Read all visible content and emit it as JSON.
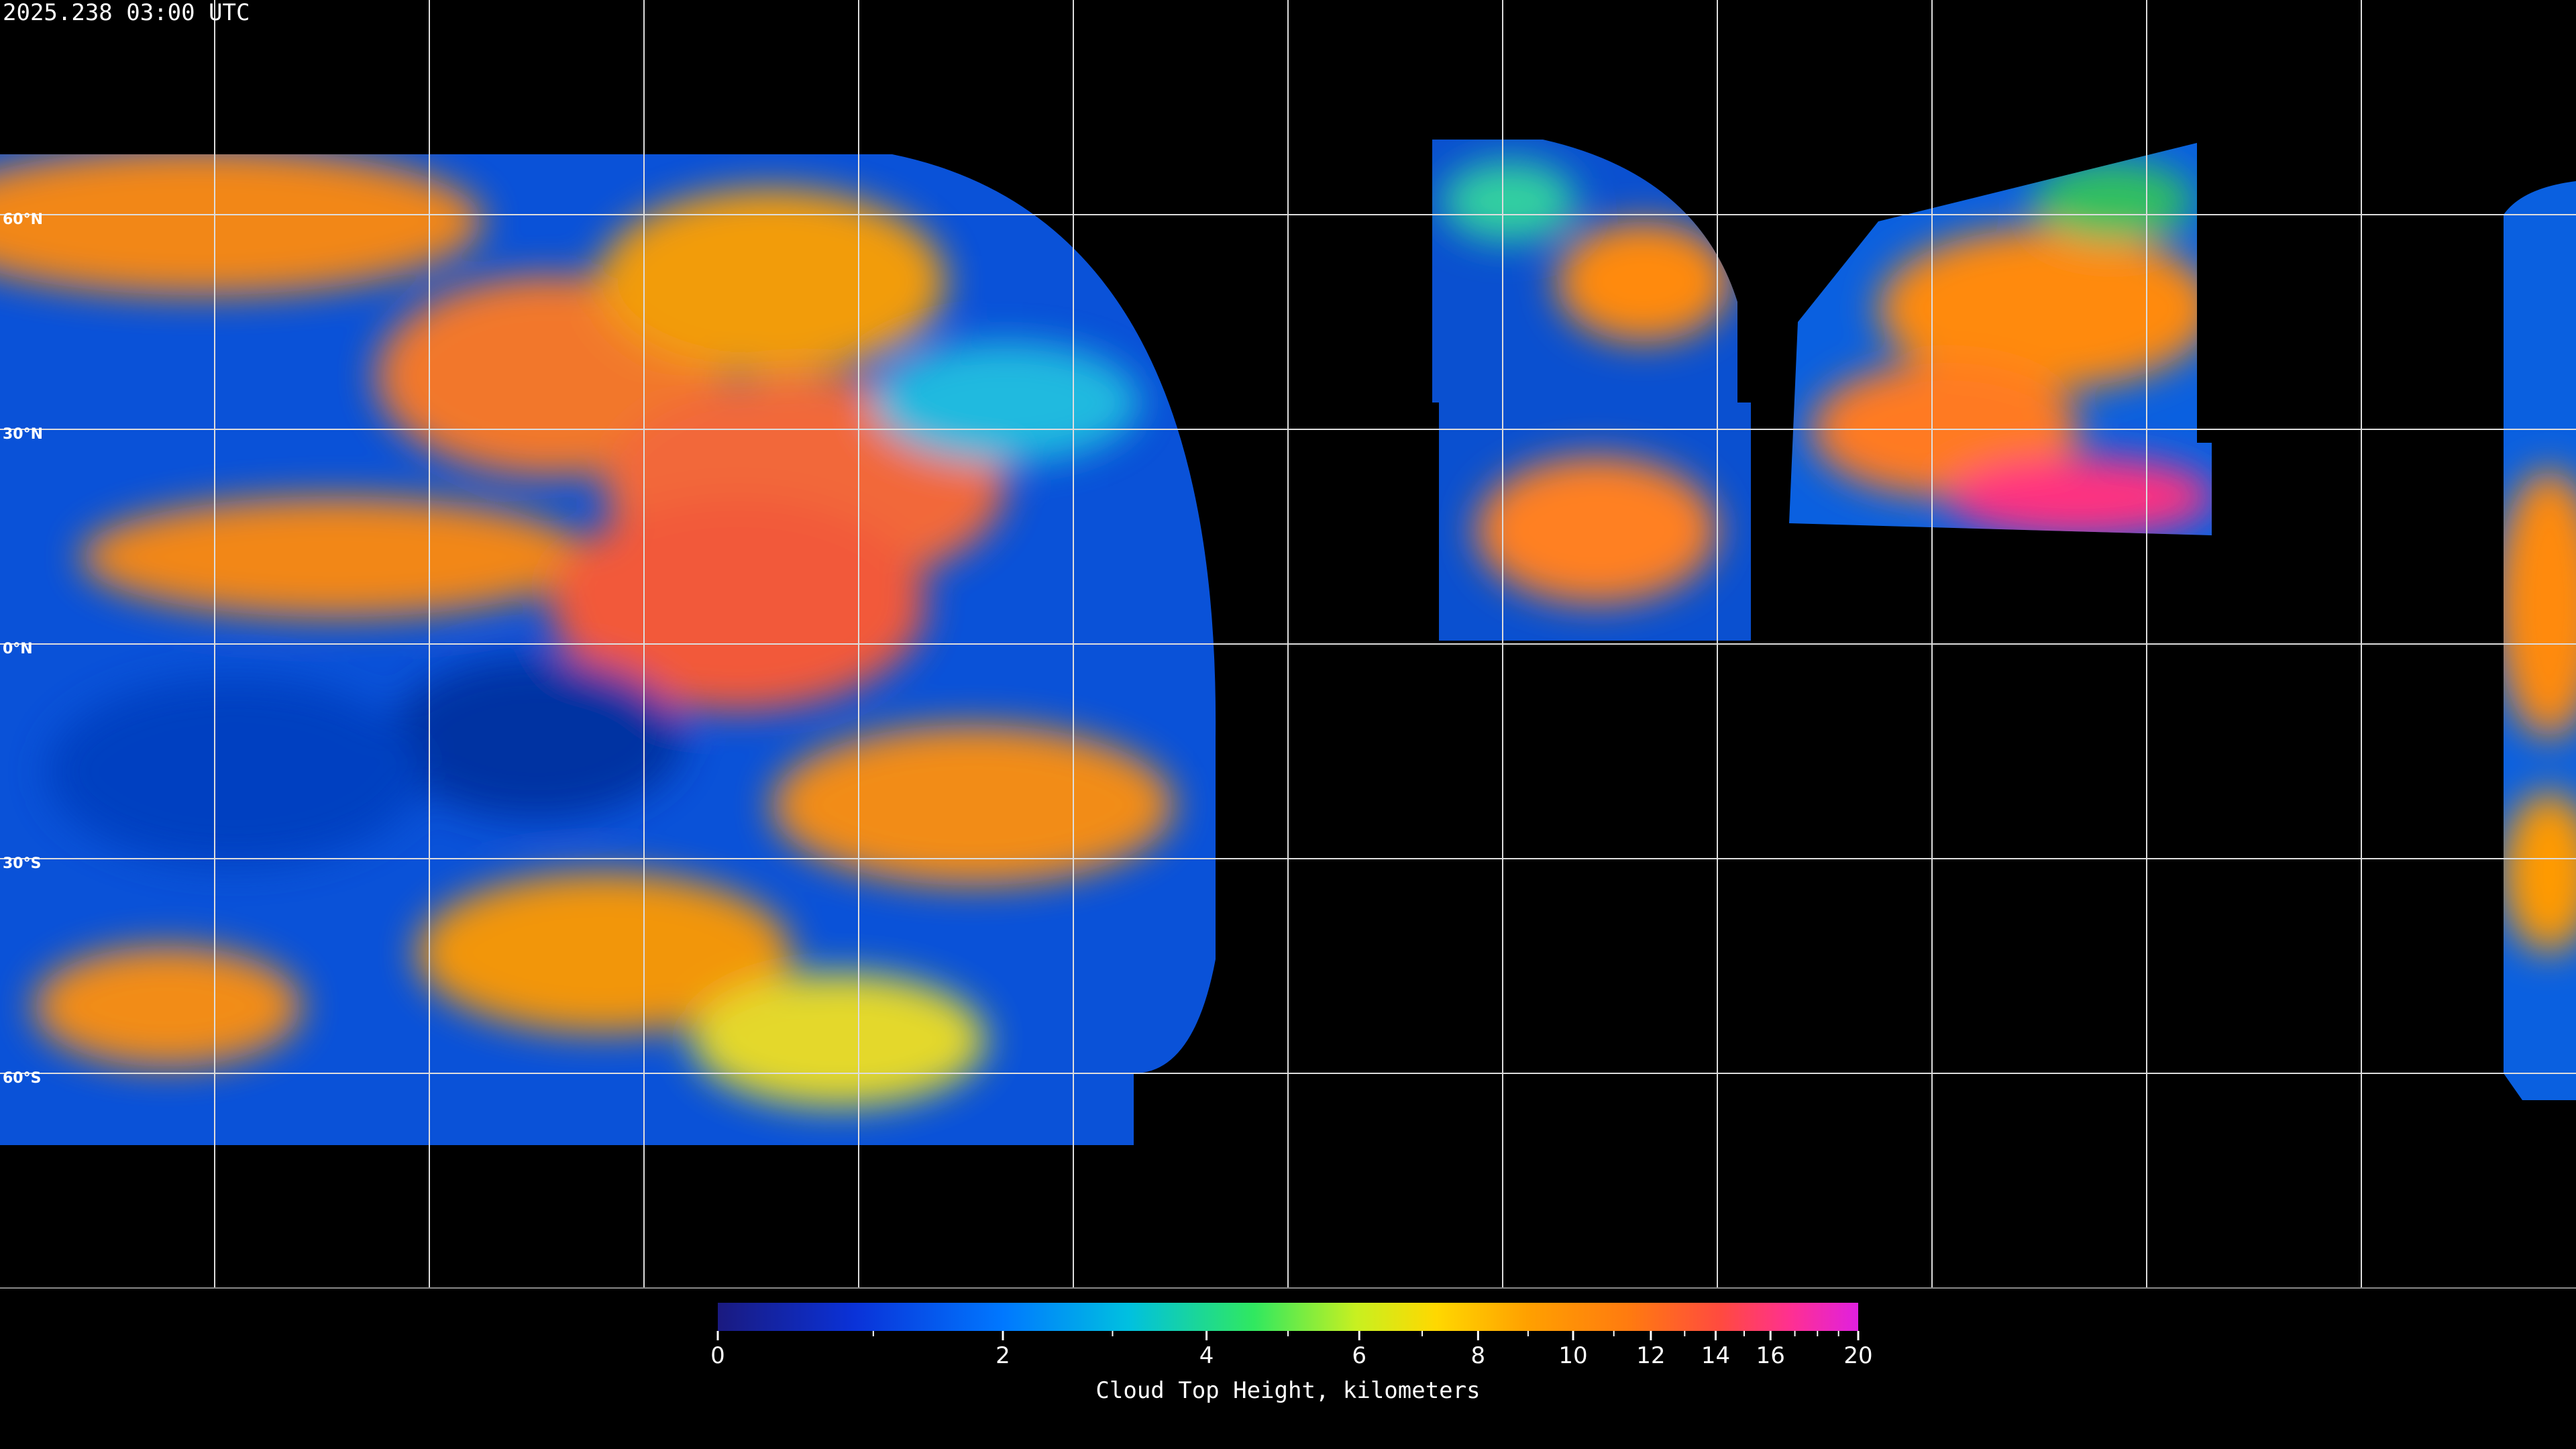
{
  "map": {
    "timestamp": "2025.238 03:00 UTC",
    "latitude_lines": [
      {
        "value": 60,
        "label": "60°N"
      },
      {
        "value": 30,
        "label": "30°N"
      },
      {
        "value": 0,
        "label": "0°N"
      },
      {
        "value": -30,
        "label": "30°S"
      },
      {
        "value": -60,
        "label": "60°S"
      }
    ],
    "longitude_lines": [
      -150,
      -120,
      -90,
      -60,
      -30,
      0,
      30,
      60,
      90,
      120,
      150
    ],
    "colorbar": {
      "title": "Cloud Top Height, kilometers",
      "lim": [
        0,
        20
      ],
      "ticks": [
        0,
        2,
        4,
        6,
        8,
        10,
        12,
        14,
        16,
        20
      ],
      "minor_ticks": [
        1,
        3,
        5,
        7,
        9,
        11,
        13,
        15,
        17,
        18,
        19
      ]
    }
  }
}
